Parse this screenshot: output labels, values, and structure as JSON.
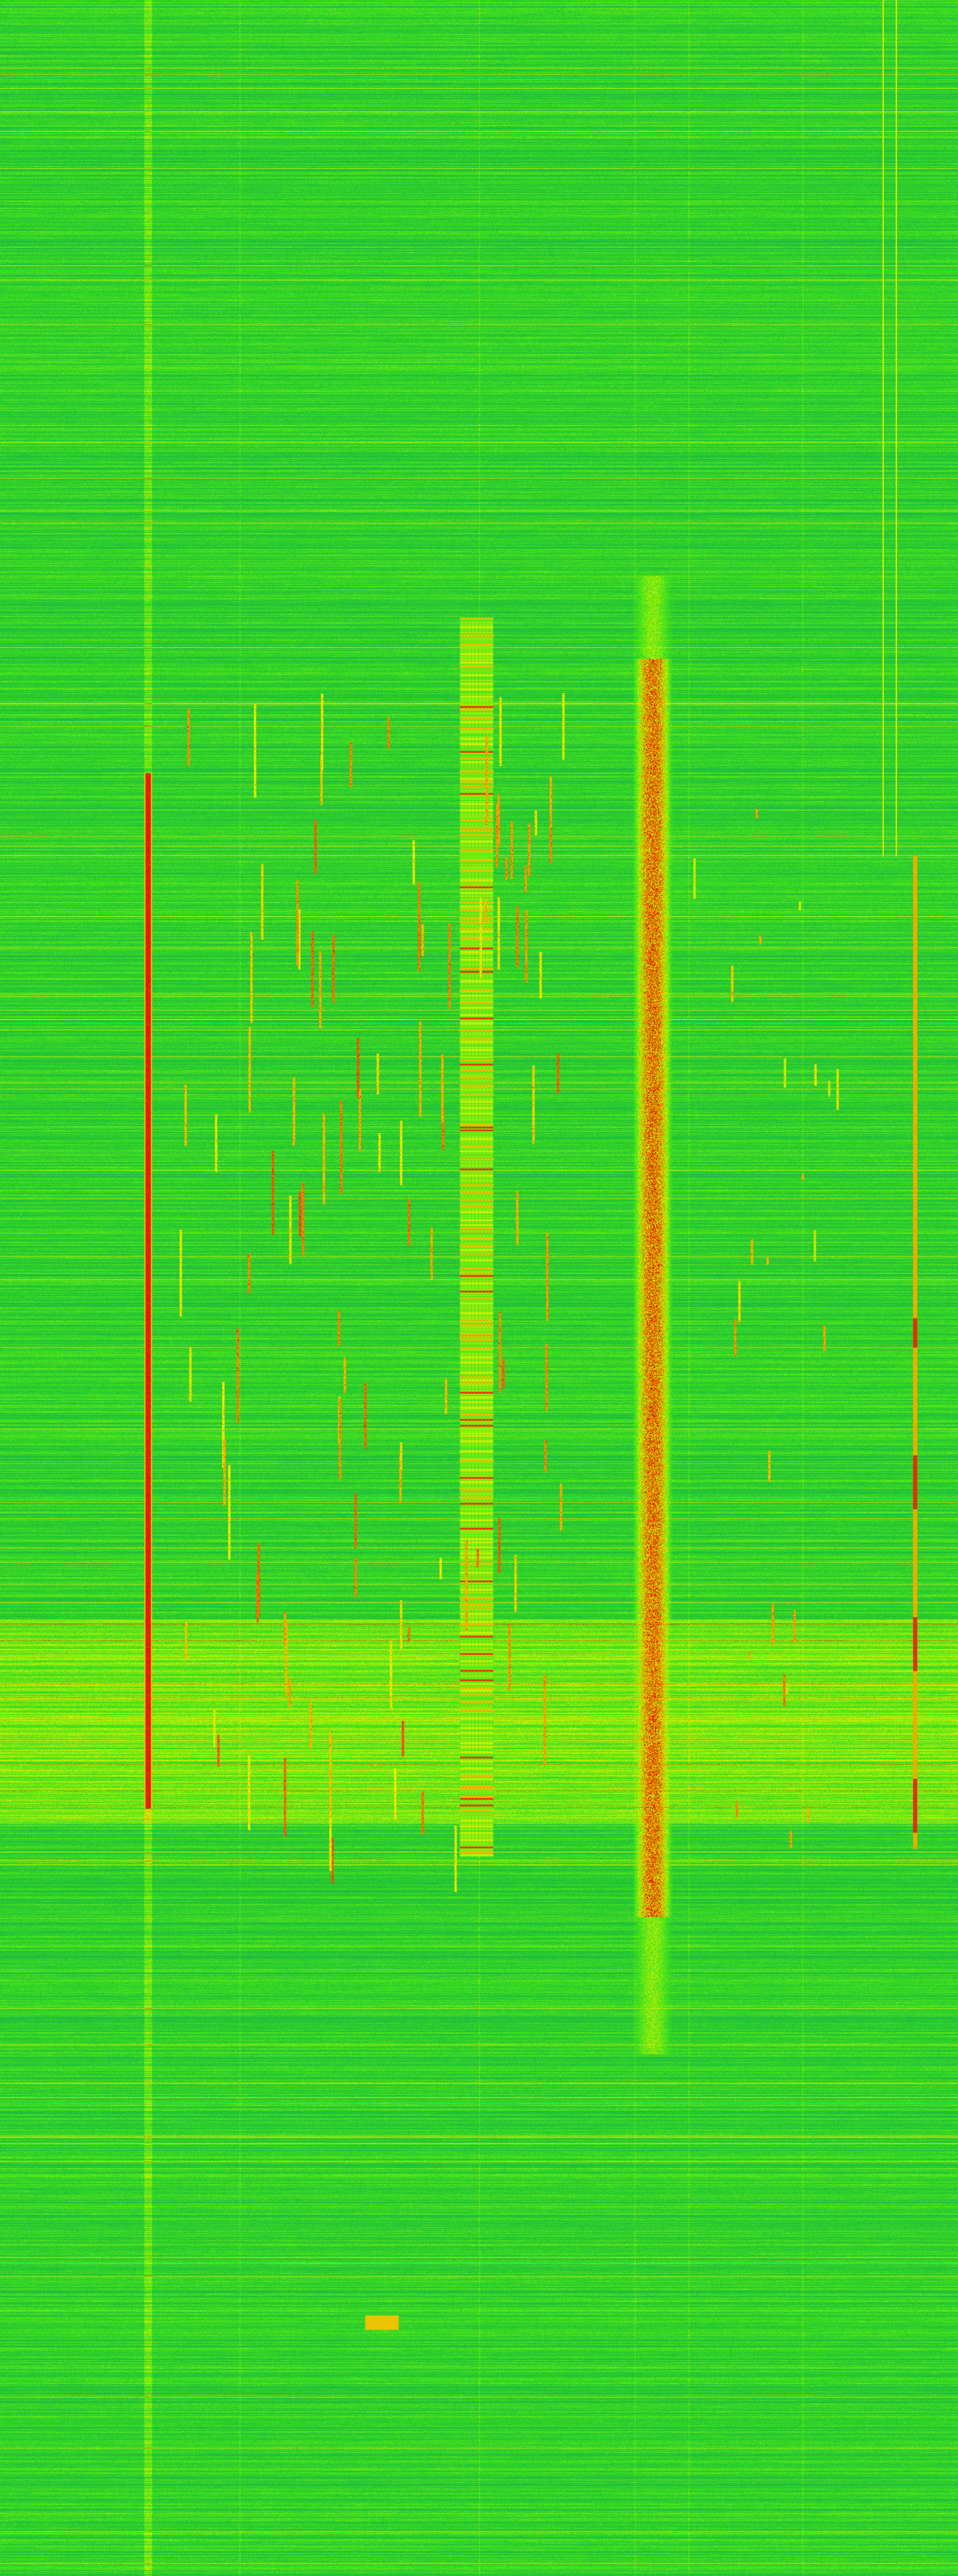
{
  "waterfall": {
    "colormap": [
      "#2a6fa8",
      "#22a860",
      "#20c830",
      "#50e818",
      "#e8f000",
      "#f08000",
      "#e00000"
    ]
  }
}
